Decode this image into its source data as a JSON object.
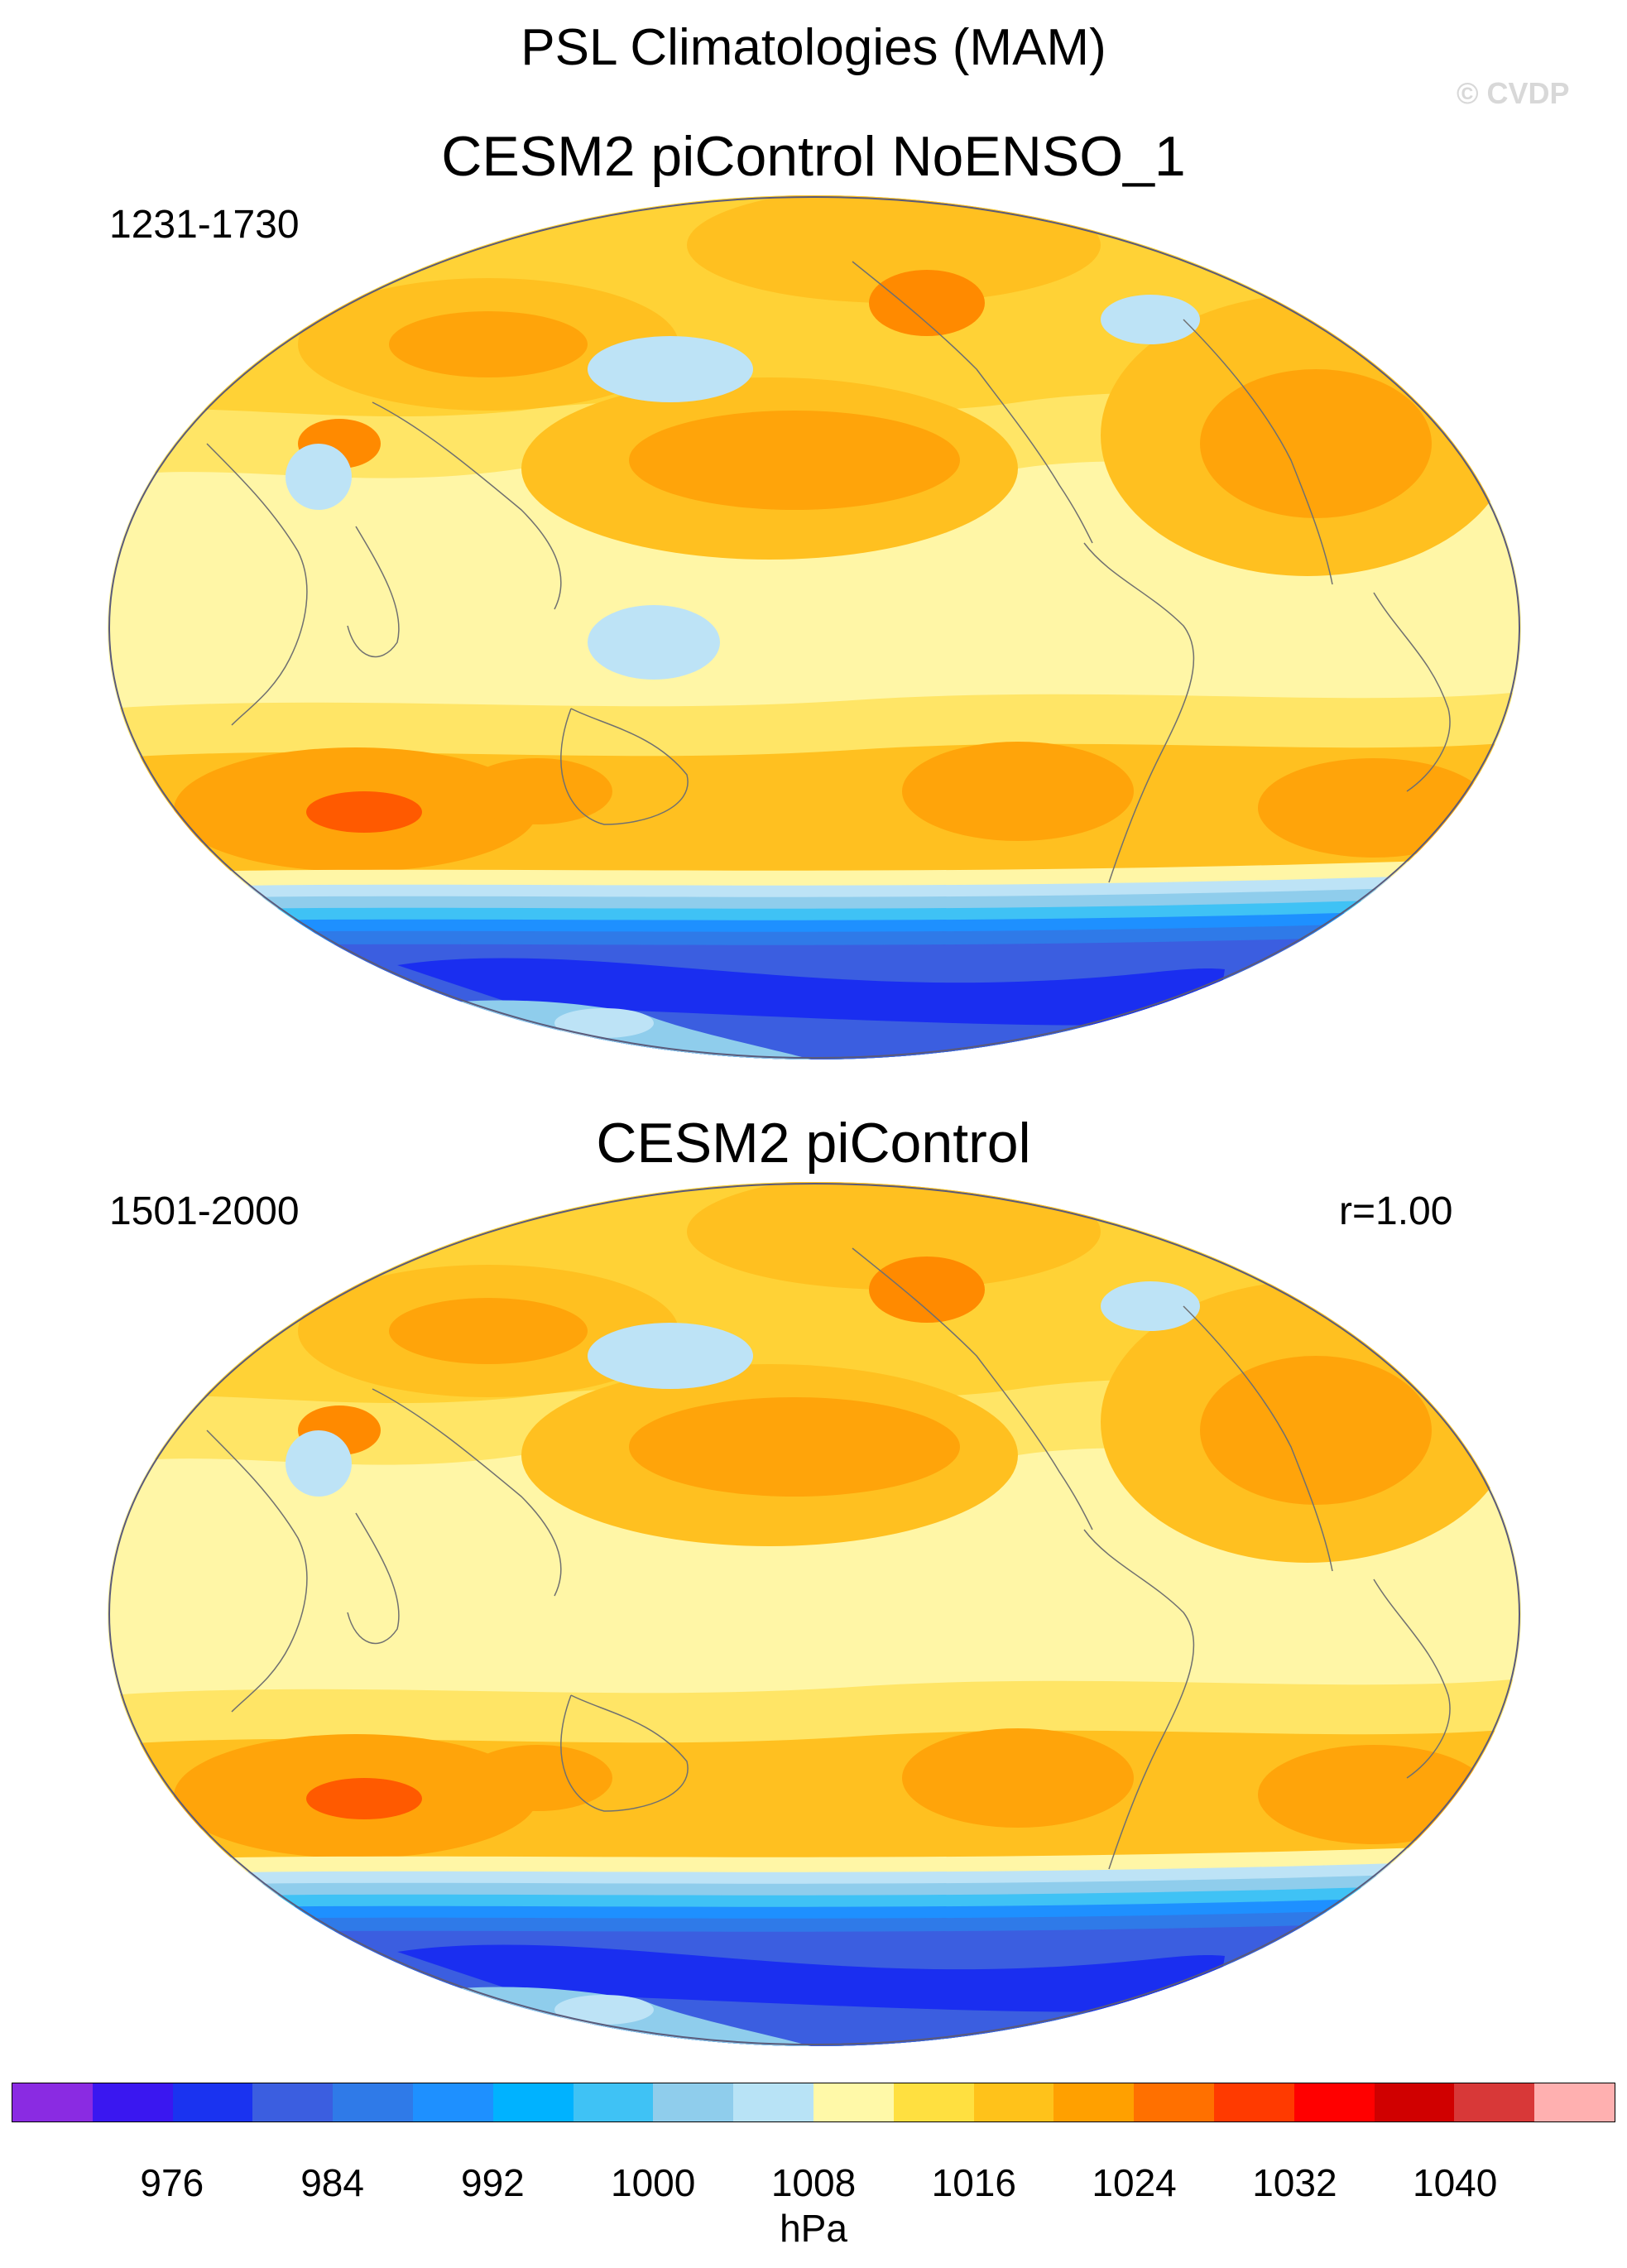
{
  "figure": {
    "title": "PSL Climatologies (MAM)",
    "copyright": "© CVDP"
  },
  "panels": [
    {
      "title": "CESM2 piControl NoENSO_1",
      "years": "1231-1730",
      "stat": ""
    },
    {
      "title": "CESM2 piControl",
      "years": "1501-2000",
      "stat": "r=1.00"
    }
  ],
  "colorbar": {
    "unit": "hPa",
    "labels": [
      "976",
      "984",
      "992",
      "1000",
      "1008",
      "1016",
      "1024",
      "1032",
      "1040"
    ],
    "colors": [
      "#8a2be2",
      "#3a17f0",
      "#1a33f0",
      "#3b5ee0",
      "#2f7ae8",
      "#1e90ff",
      "#00b2ff",
      "#3fc2f5",
      "#8fcdec",
      "#b8e3f6",
      "#fff9a8",
      "#ffe040",
      "#ffc21a",
      "#ffa000",
      "#ff7000",
      "#ff3a00",
      "#ff0000",
      "#d00000",
      "#d83838",
      "#ffb0b0"
    ]
  },
  "palette": {
    "pale_yellow": "#fff6a6",
    "light_yellow": "#ffe566",
    "yellow": "#ffd236",
    "gold": "#ffc020",
    "orange": "#ffa40a",
    "dark_orange": "#ff8a00",
    "red_orange": "#ff5a00",
    "light_blue": "#bde3f6",
    "sky_blue": "#8fcdec",
    "blue": "#2f7ae8",
    "mid_blue": "#3b5ee0",
    "deep_blue": "#1a2ef0",
    "violet": "#5a20f0",
    "coast": "#707070"
  }
}
